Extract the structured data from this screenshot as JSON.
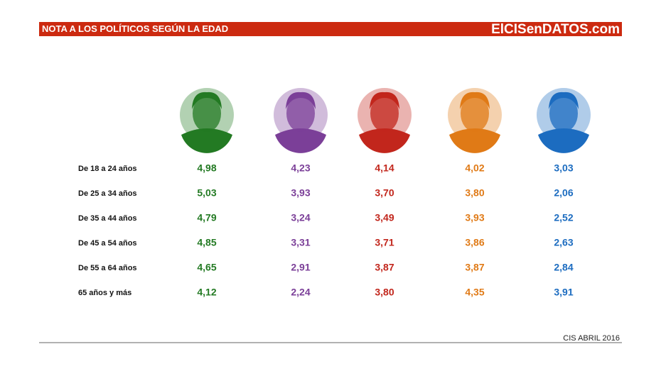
{
  "header": {
    "title": "NOTA A LOS POLÍTICOS SEGÚN LA EDAD",
    "brand": "ElCISenDATOS.com"
  },
  "table": {
    "colors": [
      "#237a23",
      "#7b3f98",
      "#c2261c",
      "#e07a16",
      "#1c6cc0"
    ],
    "rows": [
      {
        "label": "De 18 a 24 años",
        "values": [
          "4,98",
          "4,23",
          "4,14",
          "4,02",
          "3,03"
        ]
      },
      {
        "label": "De 25 a 34 años",
        "values": [
          "5,03",
          "3,93",
          "3,70",
          "3,80",
          "2,06"
        ]
      },
      {
        "label": "De 35 a 44 años",
        "values": [
          "4,79",
          "3,24",
          "3,49",
          "3,93",
          "2,52"
        ]
      },
      {
        "label": "De 45 a 54 años",
        "values": [
          "4,85",
          "3,31",
          "3,71",
          "3,86",
          "2,63"
        ]
      },
      {
        "label": "De 55 a 64 años",
        "values": [
          "4,65",
          "2,91",
          "3,87",
          "3,87",
          "2,84"
        ]
      },
      {
        "label": "65 años y más",
        "values": [
          "4,12",
          "2,24",
          "3,80",
          "4,35",
          "3,91"
        ]
      }
    ]
  },
  "footer": {
    "source": "CIS ABRIL 2016"
  }
}
